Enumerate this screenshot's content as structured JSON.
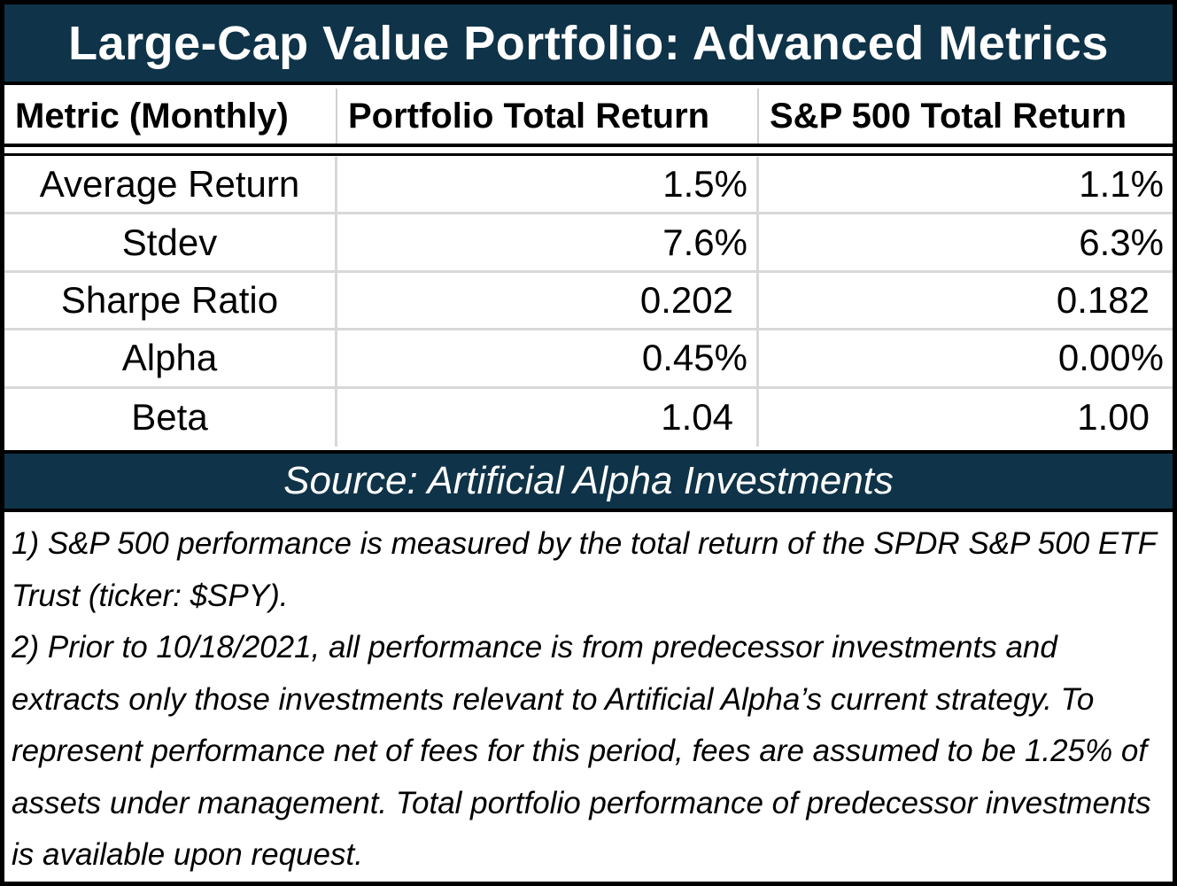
{
  "title": "Large-Cap Value Portfolio: Advanced Metrics",
  "headers": [
    "Metric (Monthly)",
    "Portfolio Total Return",
    "S&P 500 Total Return"
  ],
  "rows": [
    {
      "metric": "Average Return",
      "portfolio": "1.5%",
      "sp500": "1.1%"
    },
    {
      "metric": "Stdev",
      "portfolio": "7.6%",
      "sp500": "6.3%"
    },
    {
      "metric": "Sharpe Ratio",
      "portfolio": "0.202",
      "sp500": "0.182"
    },
    {
      "metric": "Alpha",
      "portfolio": "0.45%",
      "sp500": "0.00%"
    },
    {
      "metric": "Beta",
      "portfolio": "1.04",
      "sp500": "1.00"
    }
  ],
  "source": "Source: Artificial Alpha Investments",
  "notes": [
    "1) S&P 500 performance is measured by the total return of the SPDR S&P 500 ETF Trust (ticker: $SPY).",
    "2) Prior to 10/18/2021, all performance is from predecessor investments and extracts only those investments relevant to Artificial Alpha’s current strategy. To represent performance net of fees for this period, fees are assumed to be 1.25% of assets under management. Total portfolio performance of predecessor investments is available upon request."
  ]
}
